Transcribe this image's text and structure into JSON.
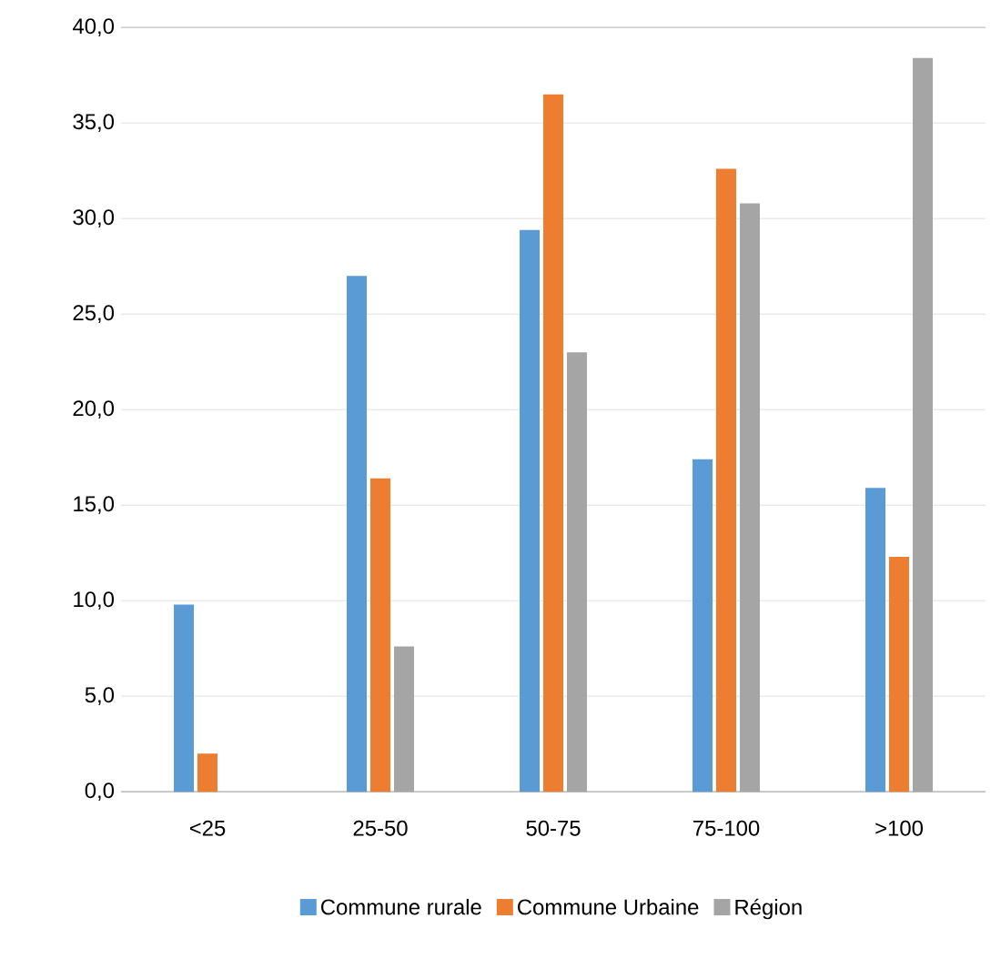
{
  "chart_data": {
    "type": "bar",
    "categories": [
      "<25",
      "25-50",
      "50-75",
      "75-100",
      ">100"
    ],
    "series": [
      {
        "name": "Commune rurale",
        "color": "#5b9bd5",
        "values": [
          9.8,
          27.0,
          29.4,
          17.4,
          15.9
        ]
      },
      {
        "name": "Commune Urbaine",
        "color": "#ed7d31",
        "values": [
          2.0,
          16.4,
          36.5,
          32.6,
          12.3
        ]
      },
      {
        "name": "Région",
        "color": "#a5a5a5",
        "values": [
          null,
          7.6,
          23.0,
          30.8,
          38.4
        ]
      }
    ],
    "ylim": [
      0,
      40
    ],
    "yticks": [
      {
        "value": 0,
        "label": "0,0"
      },
      {
        "value": 5,
        "label": "5,0"
      },
      {
        "value": 10,
        "label": "10,0"
      },
      {
        "value": 15,
        "label": "15,0"
      },
      {
        "value": 20,
        "label": "20,0"
      },
      {
        "value": 25,
        "label": "25,0"
      },
      {
        "value": 30,
        "label": "30,0"
      },
      {
        "value": 35,
        "label": "35,0"
      },
      {
        "value": 40,
        "label": "40,0"
      }
    ],
    "grid": "y",
    "legend": "bottom"
  }
}
